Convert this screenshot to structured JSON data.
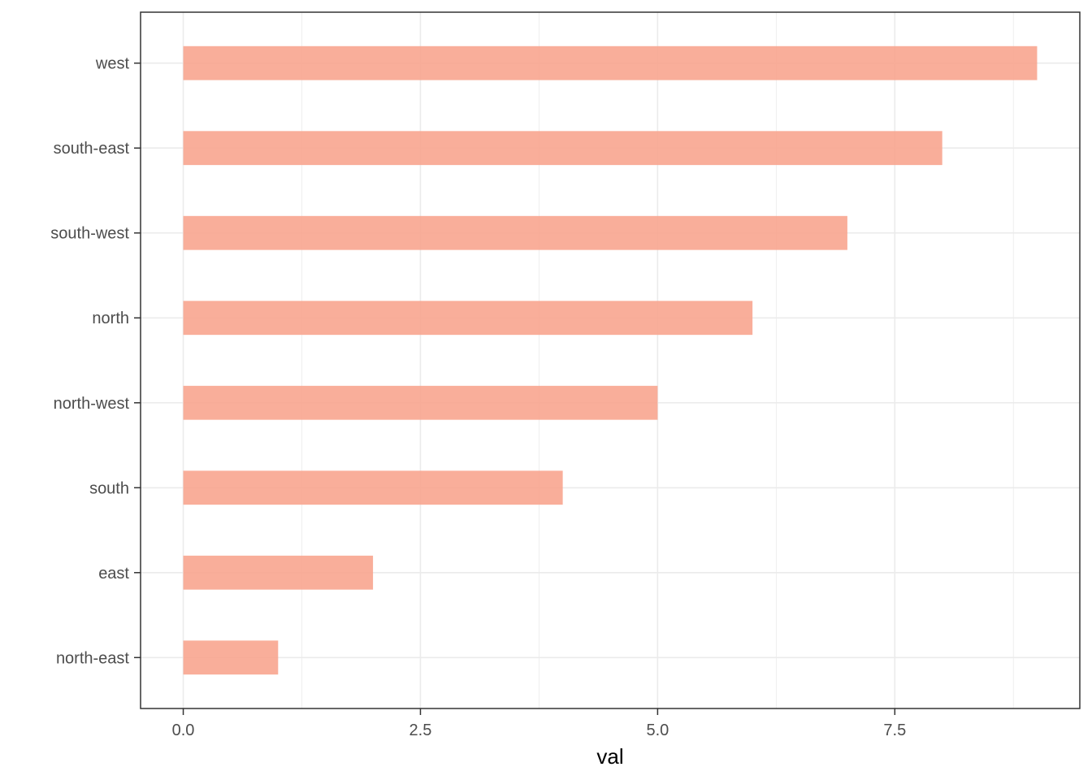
{
  "chart_data": {
    "type": "bar",
    "orientation": "horizontal",
    "categories": [
      "north-east",
      "east",
      "south",
      "north-west",
      "north",
      "south-west",
      "south-east",
      "west"
    ],
    "values": [
      1,
      2,
      4,
      5,
      6,
      7,
      8,
      9
    ],
    "title": "",
    "xlabel": "val",
    "ylabel": "",
    "xlim": [
      -0.45,
      9.45
    ],
    "x_ticks": [
      "0.0",
      "2.5",
      "5.0",
      "7.5"
    ],
    "x_tick_values": [
      0,
      2.5,
      5,
      7.5
    ],
    "grid": true,
    "bar_color": "#f8a58f",
    "gridline_color": "#ebebeb",
    "panel_border_color": "#333333"
  }
}
